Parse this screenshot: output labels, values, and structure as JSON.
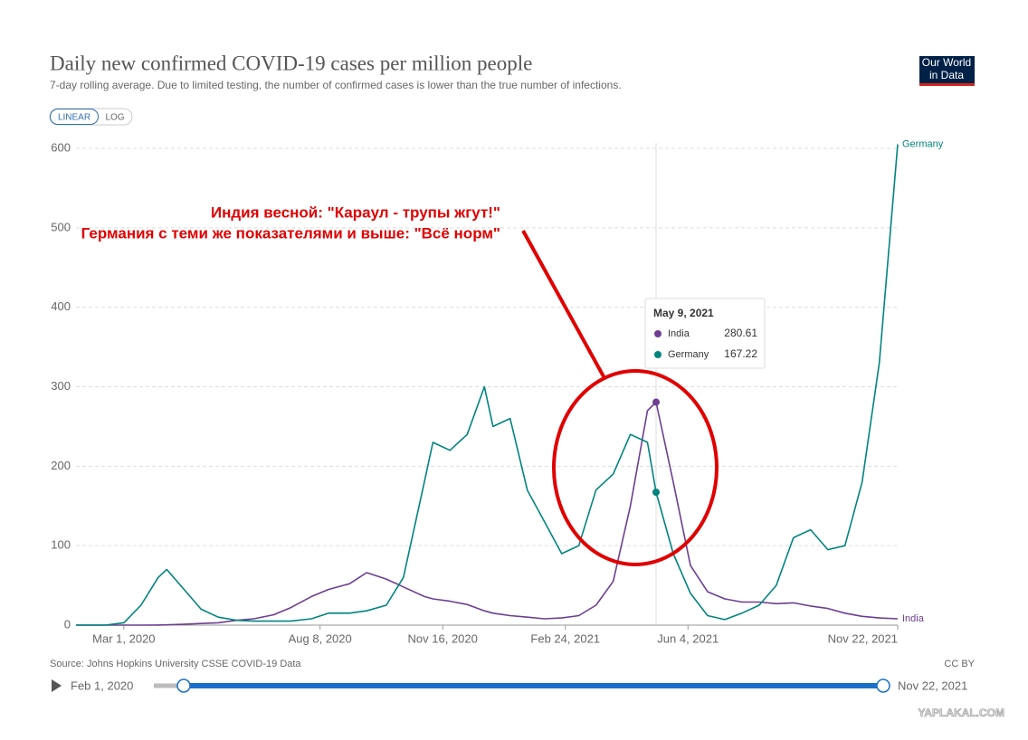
{
  "chart_data": {
    "type": "line",
    "title": "Daily new confirmed COVID-19 cases per million people",
    "subtitle": "7-day rolling average. Due to limited testing, the number of confirmed cases is lower than the true number of infections.",
    "scale_buttons": [
      "LINEAR",
      "LOG"
    ],
    "log_scale": false,
    "grid": true,
    "x": [
      "2020-01-22",
      "2020-02-15",
      "2020-03-01",
      "2020-03-15",
      "2020-03-29",
      "2020-04-05",
      "2020-04-19",
      "2020-05-03",
      "2020-05-17",
      "2020-06-01",
      "2020-06-15",
      "2020-07-01",
      "2020-07-15",
      "2020-08-01",
      "2020-08-15",
      "2020-09-01",
      "2020-09-15",
      "2020-10-01",
      "2020-10-15",
      "2020-11-01",
      "2020-11-08",
      "2020-11-22",
      "2020-12-06",
      "2020-12-20",
      "2020-12-27",
      "2021-01-10",
      "2021-01-24",
      "2021-02-07",
      "2021-02-21",
      "2021-03-07",
      "2021-03-21",
      "2021-04-04",
      "2021-04-18",
      "2021-05-02",
      "2021-05-09",
      "2021-05-23",
      "2021-06-06",
      "2021-06-20",
      "2021-07-04",
      "2021-07-18",
      "2021-08-01",
      "2021-08-15",
      "2021-08-29",
      "2021-09-12",
      "2021-09-26",
      "2021-10-10",
      "2021-10-24",
      "2021-11-07",
      "2021-11-22"
    ],
    "series": [
      {
        "name": "India",
        "color": "#6d3e91",
        "values": [
          0,
          0,
          0,
          0,
          0.1,
          0.3,
          1,
          2,
          3,
          6,
          8,
          13,
          22,
          36,
          45,
          52,
          66,
          58,
          48,
          36,
          33,
          30,
          26,
          18,
          15,
          12,
          10,
          8,
          9,
          12,
          25,
          55,
          150,
          270,
          280.61,
          180,
          75,
          42,
          33,
          29,
          29,
          27,
          28,
          24,
          21,
          15,
          11,
          9,
          8
        ]
      },
      {
        "name": "Germany",
        "color": "#00847e",
        "values": [
          0,
          0,
          3,
          25,
          60,
          70,
          45,
          20,
          10,
          6,
          5,
          5,
          5,
          8,
          15,
          15,
          18,
          25,
          60,
          180,
          230,
          220,
          240,
          300,
          250,
          260,
          170,
          130,
          90,
          100,
          170,
          190,
          240,
          230,
          167.22,
          90,
          40,
          12,
          7,
          15,
          25,
          50,
          110,
          120,
          95,
          100,
          180,
          330,
          605
        ]
      }
    ],
    "xlim": [
      "2020-01-22",
      "2021-11-22"
    ],
    "xticks": [
      {
        "value": "2020-03-01",
        "label": "Mar 1, 2020"
      },
      {
        "value": "2020-08-08",
        "label": "Aug 8, 2020"
      },
      {
        "value": "2020-11-16",
        "label": "Nov 16, 2020"
      },
      {
        "value": "2021-02-24",
        "label": "Feb 24, 2021"
      },
      {
        "value": "2021-06-04",
        "label": "Jun 4, 2021"
      },
      {
        "value": "2021-11-22",
        "label": "Nov 22, 2021"
      }
    ],
    "ylim": [
      0,
      600
    ],
    "yticks": [
      0,
      100,
      200,
      300,
      400,
      500,
      600
    ],
    "tooltip": {
      "date": "May 9, 2021"
    },
    "annotations": [
      "Индия весной: \"Караул - трупы жгут!\"",
      "Германия с теми же показателями и выше: \"Всё норм\""
    ],
    "source": "Source: Johns Hopkins University CSSE COVID-19 Data",
    "license": "CC BY",
    "logo": [
      "Our World",
      "in Data"
    ],
    "timeline": {
      "start": "Feb 1, 2020",
      "end": "Nov 22, 2021"
    },
    "watermark": "YAPLAKAL.COM"
  }
}
